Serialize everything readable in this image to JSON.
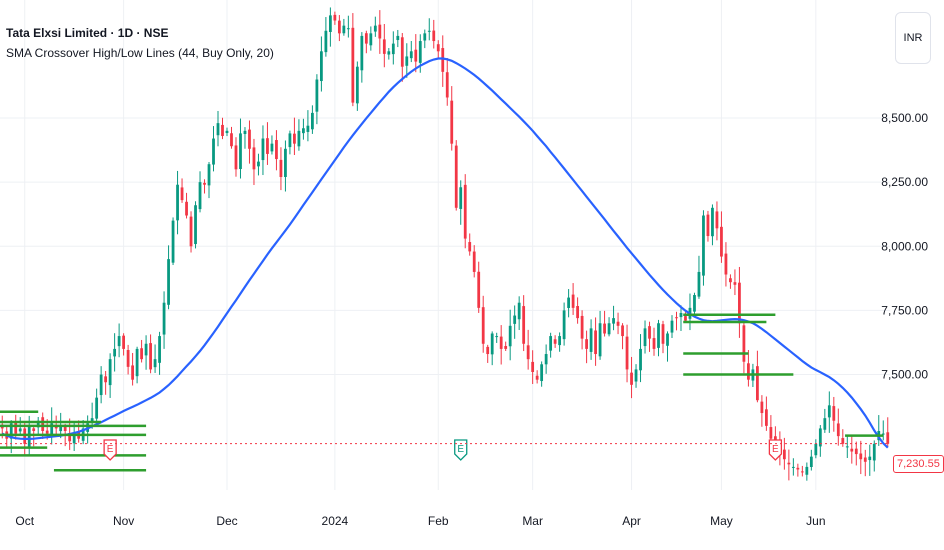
{
  "header": {
    "symbol_title": "Tata Elxsi Limited · 1D · NSE",
    "indicator_title": "SMA Crossover High/Low Lines (44, Buy Only, 20)"
  },
  "currency_label": "INR",
  "last_price_label": "7,230.55",
  "event_marker_label": "E",
  "colors": {
    "up": "#089981",
    "down": "#f23645",
    "sma": "#2962ff",
    "levels": "#2e9e2e",
    "grid": "#eef0f4",
    "text": "#131722"
  },
  "chart_data": {
    "type": "candlestick",
    "title": "Tata Elxsi Limited · 1D · NSE",
    "y_axis": {
      "ticks": [
        "8,500.00",
        "8,250.00",
        "8,000.00",
        "7,750.00",
        "7,500.00"
      ],
      "ylim": [
        7050,
        8960
      ],
      "position": "right"
    },
    "x_axis": {
      "ticks": [
        "Oct",
        "Nov",
        "Dec",
        "2024",
        "Feb",
        "Mar",
        "Apr",
        "May",
        "Jun"
      ]
    },
    "grid": true,
    "last_price": 7230.55,
    "series": [
      {
        "name": "Tata Elxsi Limited",
        "type": "ohlc",
        "close": [
          7290,
          7250,
          7310,
          7270,
          7290,
          7230,
          7300,
          7280,
          7320,
          7280,
          7270,
          7310,
          7290,
          7300,
          7280,
          7240,
          7270,
          7250,
          7290,
          7310,
          7330,
          7410,
          7500,
          7470,
          7560,
          7600,
          7650,
          7600,
          7530,
          7480,
          7600,
          7560,
          7620,
          7520,
          7560,
          7650,
          7780,
          7950,
          8100,
          8240,
          8180,
          8120,
          8000,
          8160,
          8250,
          8240,
          8320,
          8420,
          8480,
          8430,
          8450,
          8390,
          8300,
          8440,
          8450,
          8380,
          8300,
          8330,
          8420,
          8360,
          8400,
          8340,
          8270,
          8380,
          8440,
          8400,
          8450,
          8460,
          8470,
          8520,
          8650,
          8760,
          8840,
          8900,
          8880,
          8830,
          8860,
          8850,
          8560,
          8700,
          8820,
          8790,
          8830,
          8860,
          8810,
          8750,
          8760,
          8790,
          8820,
          8700,
          8740,
          8760,
          8720,
          8800,
          8830,
          8840,
          8800,
          8760,
          8680,
          8580,
          8400,
          8150,
          8230,
          8030,
          7980,
          7900,
          7760,
          7620,
          7580,
          7660,
          7650,
          7600,
          7600,
          7690,
          7730,
          7780,
          7620,
          7560,
          7510,
          7480,
          7540,
          7580,
          7650,
          7620,
          7650,
          7750,
          7800,
          7760,
          7720,
          7640,
          7600,
          7680,
          7580,
          7700,
          7660,
          7700,
          7720,
          7690,
          7650,
          7520,
          7460,
          7520,
          7600,
          7680,
          7640,
          7600,
          7700,
          7620,
          7660,
          7710,
          7720,
          7740,
          7710,
          7760,
          7810,
          7900,
          8120,
          8040,
          8150,
          8070,
          7960,
          7890,
          7860,
          7850,
          7700,
          7550,
          7480,
          7520,
          7400,
          7350,
          7300,
          7250,
          7220,
          7200,
          7170,
          7150,
          7140,
          7130,
          7120,
          7140,
          7180,
          7230,
          7290,
          7330,
          7380,
          7320,
          7260,
          7230,
          7220,
          7200,
          7190,
          7170,
          7160,
          7180,
          7230,
          7280,
          7270,
          7230
        ]
      },
      {
        "name": "SMA 44",
        "type": "line",
        "values": [
          7270,
          7262,
          7256,
          7252,
          7250,
          7249,
          7249,
          7250,
          7252,
          7254,
          7256,
          7258,
          7260,
          7262,
          7265,
          7268,
          7272,
          7277,
          7283,
          7290,
          7298,
          7306,
          7314,
          7323,
          7332,
          7340,
          7349,
          7358,
          7366,
          7374,
          7382,
          7391,
          7400,
          7409,
          7419,
          7430,
          7444,
          7459,
          7476,
          7494,
          7513,
          7532,
          7551,
          7571,
          7592,
          7614,
          7638,
          7662,
          7687,
          7713,
          7739,
          7765,
          7790,
          7816,
          7842,
          7868,
          7893,
          7918,
          7943,
          7968,
          7992,
          8015,
          8038,
          8061,
          8085,
          8110,
          8135,
          8161,
          8186,
          8211,
          8236,
          8261,
          8286,
          8311,
          8336,
          8361,
          8386,
          8410,
          8433,
          8455,
          8477,
          8499,
          8520,
          8541,
          8562,
          8582,
          8602,
          8620,
          8637,
          8652,
          8667,
          8681,
          8693,
          8704,
          8713,
          8722,
          8728,
          8732,
          8732,
          8729,
          8723,
          8714,
          8704,
          8693,
          8681,
          8668,
          8654,
          8639,
          8623,
          8607,
          8590,
          8573,
          8556,
          8539,
          8522,
          8505,
          8487,
          8469,
          8450,
          8430,
          8410,
          8390,
          8368,
          8347,
          8325,
          8303,
          8281,
          8259,
          8237,
          8215,
          8193,
          8171,
          8149,
          8127,
          8105,
          8082,
          8060,
          8038,
          8016,
          7994,
          7973,
          7952,
          7931,
          7910,
          7889,
          7869,
          7849,
          7830,
          7812,
          7795,
          7778,
          7763,
          7749,
          7737,
          7726,
          7718,
          7712,
          7709,
          7708,
          7709,
          7711,
          7713,
          7715,
          7716,
          7715,
          7712,
          7707,
          7700,
          7690,
          7678,
          7665,
          7651,
          7637,
          7623,
          7609,
          7595,
          7581,
          7567,
          7553,
          7540,
          7528,
          7518,
          7509,
          7500,
          7490,
          7478,
          7464,
          7448,
          7430,
          7410,
          7388,
          7365,
          7340,
          7312,
          7282,
          7255,
          7232,
          7215
        ]
      }
    ],
    "level_lines": [
      {
        "from_bar": 0,
        "to_bar": 8,
        "price": 7355
      },
      {
        "from_bar": 0,
        "to_bar": 22,
        "price": 7315
      },
      {
        "from_bar": 0,
        "to_bar": 32,
        "price": 7300
      },
      {
        "from_bar": 0,
        "to_bar": 32,
        "price": 7265
      },
      {
        "from_bar": 0,
        "to_bar": 10,
        "price": 7215
      },
      {
        "from_bar": 0,
        "to_bar": 32,
        "price": 7185
      },
      {
        "from_bar": 12,
        "to_bar": 32,
        "price": 7127
      },
      {
        "from_bar": 152,
        "to_bar": 172,
        "price": 7733
      },
      {
        "from_bar": 152,
        "to_bar": 170,
        "price": 7705
      },
      {
        "from_bar": 152,
        "to_bar": 166,
        "price": 7582
      },
      {
        "from_bar": 152,
        "to_bar": 176,
        "price": 7500
      },
      {
        "from_bar": 188,
        "to_bar": 196,
        "price": 7262
      }
    ],
    "event_markers": [
      {
        "bar": 24,
        "label": "E",
        "kind": "earnings",
        "color": "#f23645"
      },
      {
        "bar": 102,
        "label": "E",
        "kind": "earnings",
        "color": "#089981"
      },
      {
        "bar": 172,
        "label": "E",
        "kind": "earnings",
        "color": "#f23645"
      }
    ]
  }
}
